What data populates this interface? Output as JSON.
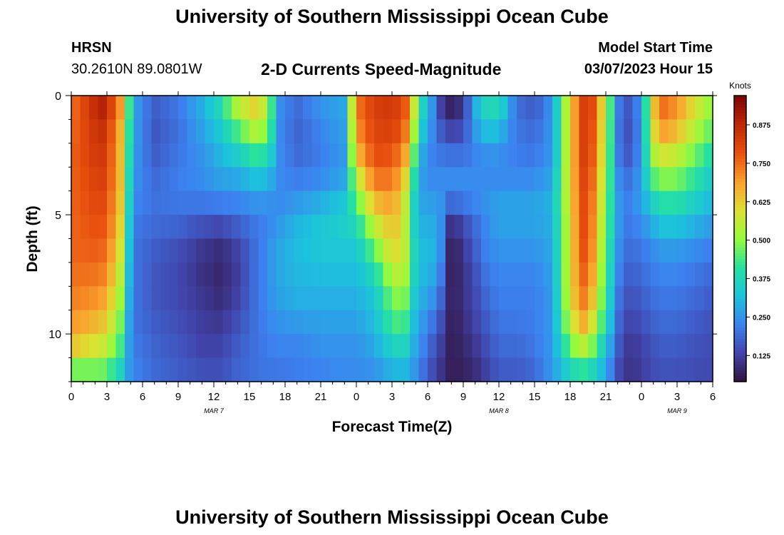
{
  "header": {
    "title": "University of Southern Mississippi Ocean Cube",
    "station": "HRSN",
    "coords": "30.2610N  89.0801W",
    "plot_title": "2-D Currents Speed-Magnitude",
    "model_label": "Model Start Time",
    "model_time": "03/07/2023 Hour 15"
  },
  "footer": {
    "title": "University of Southern Mississippi Ocean Cube"
  },
  "chart_data": {
    "type": "heatmap",
    "xlabel": "Forecast Time(Z)",
    "ylabel": "Depth (ft)",
    "x_hours": [
      0,
      3,
      6,
      9,
      12,
      15,
      18,
      21,
      24,
      27,
      30,
      33,
      36,
      39,
      42,
      45,
      48,
      51,
      54
    ],
    "x_tick_labels": [
      "0",
      "3",
      "6",
      "9",
      "12",
      "15",
      "18",
      "21",
      "0",
      "3",
      "6",
      "9",
      "12",
      "15",
      "18",
      "21",
      "0",
      "3",
      "6"
    ],
    "day_labels": [
      {
        "hour": 12,
        "text": "MAR 7"
      },
      {
        "hour": 36,
        "text": "MAR 8"
      },
      {
        "hour": 51,
        "text": "MAR 9"
      }
    ],
    "y_ticks": [
      0,
      5,
      10
    ],
    "y_tick_labels": [
      "0",
      "5",
      "10"
    ],
    "xlim": [
      0,
      54
    ],
    "ylim": [
      12,
      0
    ],
    "colorbar": {
      "label": "Knots",
      "range": [
        0.04,
        0.97
      ],
      "ticks": [
        0.125,
        0.25,
        0.375,
        0.5,
        0.625,
        0.75,
        0.875
      ],
      "tick_labels": [
        "0.125",
        "0.250",
        "0.375",
        "0.500",
        "0.625",
        "0.750",
        "0.875"
      ]
    },
    "depth_levels": [
      0,
      1,
      2,
      3,
      4,
      5,
      6,
      7,
      8,
      9,
      10,
      11,
      12
    ],
    "knots_hours": [
      0,
      2.5,
      4,
      4.7,
      5.6,
      7,
      9,
      11,
      12.5,
      14,
      15.5,
      16.5,
      17.5,
      19,
      21,
      23,
      24,
      25.5,
      27,
      28,
      28.5,
      29.3,
      30,
      31,
      32,
      33,
      34,
      35,
      36,
      36.8,
      37.5,
      39,
      40.5,
      42,
      43,
      43.7,
      45,
      46.2,
      47,
      48,
      48.7,
      49.5,
      51,
      52.5,
      54
    ],
    "knots_speeds": [
      [
        0.74,
        0.92,
        0.78,
        0.48,
        0.26,
        0.18,
        0.22,
        0.3,
        0.4,
        0.6,
        0.64,
        0.55,
        0.25,
        0.2,
        0.26,
        0.28,
        0.75,
        0.82,
        0.84,
        0.8,
        0.74,
        0.4,
        0.35,
        0.12,
        0.05,
        0.1,
        0.3,
        0.4,
        0.42,
        0.3,
        0.2,
        0.15,
        0.26,
        0.62,
        0.82,
        0.84,
        0.55,
        0.2,
        0.17,
        0.26,
        0.54,
        0.76,
        0.7,
        0.6,
        0.5
      ],
      [
        0.74,
        0.88,
        0.72,
        0.46,
        0.25,
        0.16,
        0.2,
        0.28,
        0.35,
        0.48,
        0.6,
        0.52,
        0.24,
        0.18,
        0.24,
        0.28,
        0.72,
        0.82,
        0.84,
        0.78,
        0.7,
        0.38,
        0.3,
        0.15,
        0.08,
        0.12,
        0.28,
        0.35,
        0.34,
        0.26,
        0.2,
        0.18,
        0.26,
        0.62,
        0.82,
        0.82,
        0.55,
        0.18,
        0.15,
        0.25,
        0.52,
        0.76,
        0.7,
        0.58,
        0.48
      ],
      [
        0.76,
        0.86,
        0.7,
        0.44,
        0.25,
        0.16,
        0.2,
        0.26,
        0.32,
        0.4,
        0.48,
        0.45,
        0.24,
        0.18,
        0.22,
        0.26,
        0.68,
        0.8,
        0.8,
        0.74,
        0.62,
        0.34,
        0.26,
        0.2,
        0.18,
        0.18,
        0.24,
        0.28,
        0.28,
        0.24,
        0.22,
        0.2,
        0.26,
        0.62,
        0.82,
        0.82,
        0.54,
        0.18,
        0.15,
        0.25,
        0.5,
        0.64,
        0.6,
        0.5,
        0.42
      ],
      [
        0.76,
        0.84,
        0.7,
        0.42,
        0.24,
        0.18,
        0.22,
        0.24,
        0.28,
        0.3,
        0.36,
        0.34,
        0.24,
        0.2,
        0.22,
        0.26,
        0.6,
        0.78,
        0.76,
        0.68,
        0.54,
        0.28,
        0.22,
        0.22,
        0.22,
        0.22,
        0.22,
        0.22,
        0.22,
        0.22,
        0.22,
        0.22,
        0.26,
        0.62,
        0.82,
        0.8,
        0.52,
        0.2,
        0.18,
        0.26,
        0.46,
        0.54,
        0.52,
        0.44,
        0.36
      ],
      [
        0.76,
        0.82,
        0.7,
        0.4,
        0.24,
        0.2,
        0.22,
        0.24,
        0.26,
        0.26,
        0.28,
        0.28,
        0.24,
        0.24,
        0.26,
        0.3,
        0.48,
        0.7,
        0.72,
        0.62,
        0.46,
        0.28,
        0.26,
        0.26,
        0.26,
        0.26,
        0.26,
        0.26,
        0.26,
        0.26,
        0.26,
        0.26,
        0.3,
        0.62,
        0.8,
        0.78,
        0.5,
        0.24,
        0.22,
        0.28,
        0.36,
        0.44,
        0.44,
        0.38,
        0.32
      ],
      [
        0.76,
        0.8,
        0.68,
        0.38,
        0.22,
        0.2,
        0.2,
        0.18,
        0.18,
        0.2,
        0.22,
        0.22,
        0.24,
        0.28,
        0.32,
        0.36,
        0.42,
        0.6,
        0.66,
        0.58,
        0.4,
        0.28,
        0.28,
        0.26,
        0.1,
        0.16,
        0.2,
        0.24,
        0.28,
        0.28,
        0.28,
        0.28,
        0.3,
        0.6,
        0.8,
        0.76,
        0.48,
        0.24,
        0.22,
        0.26,
        0.3,
        0.36,
        0.36,
        0.32,
        0.28
      ],
      [
        0.76,
        0.78,
        0.66,
        0.36,
        0.2,
        0.18,
        0.16,
        0.12,
        0.1,
        0.14,
        0.2,
        0.24,
        0.28,
        0.32,
        0.34,
        0.34,
        0.34,
        0.5,
        0.64,
        0.6,
        0.44,
        0.3,
        0.32,
        0.28,
        0.06,
        0.12,
        0.18,
        0.24,
        0.26,
        0.26,
        0.26,
        0.26,
        0.28,
        0.6,
        0.8,
        0.76,
        0.46,
        0.24,
        0.2,
        0.22,
        0.24,
        0.28,
        0.28,
        0.26,
        0.24
      ],
      [
        0.76,
        0.76,
        0.62,
        0.34,
        0.2,
        0.16,
        0.14,
        0.1,
        0.08,
        0.12,
        0.2,
        0.24,
        0.28,
        0.3,
        0.32,
        0.32,
        0.32,
        0.42,
        0.58,
        0.58,
        0.44,
        0.3,
        0.32,
        0.26,
        0.04,
        0.1,
        0.16,
        0.22,
        0.24,
        0.24,
        0.24,
        0.24,
        0.28,
        0.6,
        0.78,
        0.74,
        0.44,
        0.22,
        0.18,
        0.2,
        0.22,
        0.24,
        0.24,
        0.22,
        0.2
      ],
      [
        0.74,
        0.72,
        0.58,
        0.32,
        0.2,
        0.16,
        0.14,
        0.1,
        0.08,
        0.12,
        0.2,
        0.24,
        0.28,
        0.3,
        0.3,
        0.3,
        0.3,
        0.34,
        0.5,
        0.54,
        0.4,
        0.3,
        0.3,
        0.22,
        0.06,
        0.1,
        0.14,
        0.2,
        0.22,
        0.22,
        0.22,
        0.22,
        0.26,
        0.6,
        0.76,
        0.7,
        0.42,
        0.2,
        0.16,
        0.18,
        0.2,
        0.22,
        0.22,
        0.2,
        0.18
      ],
      [
        0.72,
        0.68,
        0.54,
        0.3,
        0.2,
        0.16,
        0.14,
        0.12,
        0.1,
        0.14,
        0.2,
        0.24,
        0.26,
        0.28,
        0.28,
        0.28,
        0.28,
        0.32,
        0.46,
        0.48,
        0.36,
        0.28,
        0.26,
        0.18,
        0.06,
        0.1,
        0.14,
        0.18,
        0.22,
        0.22,
        0.22,
        0.22,
        0.26,
        0.58,
        0.72,
        0.66,
        0.4,
        0.18,
        0.14,
        0.16,
        0.18,
        0.2,
        0.2,
        0.18,
        0.16
      ],
      [
        0.68,
        0.62,
        0.5,
        0.28,
        0.2,
        0.18,
        0.16,
        0.12,
        0.12,
        0.16,
        0.2,
        0.22,
        0.24,
        0.24,
        0.26,
        0.26,
        0.26,
        0.3,
        0.4,
        0.42,
        0.34,
        0.26,
        0.22,
        0.14,
        0.06,
        0.08,
        0.12,
        0.16,
        0.2,
        0.2,
        0.2,
        0.22,
        0.26,
        0.52,
        0.64,
        0.58,
        0.36,
        0.16,
        0.12,
        0.14,
        0.16,
        0.18,
        0.18,
        0.16,
        0.15
      ],
      [
        0.6,
        0.54,
        0.44,
        0.28,
        0.22,
        0.18,
        0.16,
        0.14,
        0.14,
        0.18,
        0.2,
        0.22,
        0.22,
        0.22,
        0.24,
        0.24,
        0.24,
        0.26,
        0.32,
        0.34,
        0.3,
        0.24,
        0.18,
        0.12,
        0.06,
        0.08,
        0.1,
        0.14,
        0.18,
        0.18,
        0.18,
        0.2,
        0.26,
        0.42,
        0.48,
        0.44,
        0.3,
        0.14,
        0.1,
        0.12,
        0.14,
        0.16,
        0.16,
        0.15,
        0.14
      ],
      [
        0.36,
        0.42,
        0.34,
        0.26,
        0.22,
        0.2,
        0.18,
        0.16,
        0.16,
        0.18,
        0.2,
        0.2,
        0.2,
        0.22,
        0.22,
        0.24,
        0.24,
        0.24,
        0.28,
        0.28,
        0.26,
        0.22,
        0.16,
        0.1,
        0.06,
        0.06,
        0.08,
        0.12,
        0.16,
        0.16,
        0.16,
        0.18,
        0.26,
        0.32,
        0.36,
        0.34,
        0.26,
        0.12,
        0.1,
        0.12,
        0.14,
        0.15,
        0.15,
        0.14,
        0.14
      ]
    ]
  }
}
